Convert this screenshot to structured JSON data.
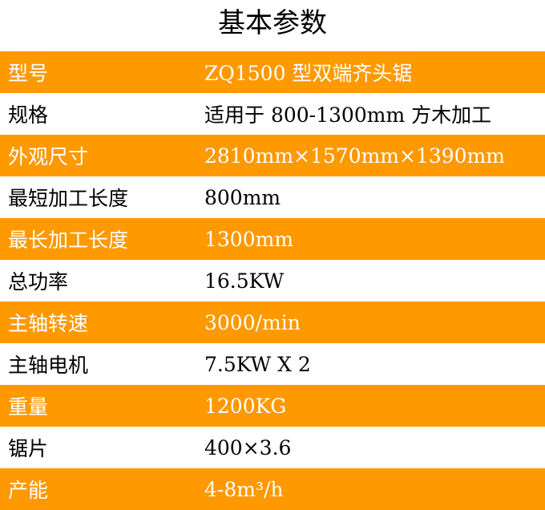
{
  "title": "基本参数",
  "accent": "#FF9900",
  "rows": [
    {
      "label": "型号",
      "value": "ZQ1500 型双端齐头锯"
    },
    {
      "label": "规格",
      "value": "适用于 800-1300mm 方木加工"
    },
    {
      "label": "外观尺寸",
      "value": "2810mm×1570mm×1390mm"
    },
    {
      "label": "最短加工长度",
      "value": "800mm"
    },
    {
      "label": "最长加工长度",
      "value": "1300mm"
    },
    {
      "label": "总功率",
      "value": "16.5KW"
    },
    {
      "label": "主轴转速",
      "value": "3000/min"
    },
    {
      "label": "主轴电机",
      "value": "7.5KW X 2"
    },
    {
      "label": "重量",
      "value": "1200KG"
    },
    {
      "label": "锯片",
      "value": "400×3.6"
    },
    {
      "label": "产能",
      "value": "4-8m³/h"
    }
  ]
}
